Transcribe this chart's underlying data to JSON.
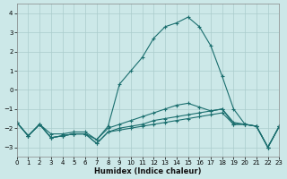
{
  "xlabel": "Humidex (Indice chaleur)",
  "xlim": [
    0,
    23
  ],
  "ylim": [
    -3.5,
    4.5
  ],
  "yticks": [
    -3,
    -2,
    -1,
    0,
    1,
    2,
    3,
    4
  ],
  "xticks": [
    0,
    1,
    2,
    3,
    4,
    5,
    6,
    7,
    8,
    9,
    10,
    11,
    12,
    13,
    14,
    15,
    16,
    17,
    18,
    19,
    20,
    21,
    22,
    23
  ],
  "background_color": "#cce8e8",
  "grid_color": "#aacccc",
  "line_color": "#1a6e6e",
  "line1_y": [
    -1.7,
    -2.4,
    -1.8,
    -2.5,
    -2.4,
    -2.3,
    -2.3,
    -2.8,
    -2.2,
    -2.1,
    -2.0,
    -1.9,
    -1.8,
    -1.7,
    -1.6,
    -1.5,
    -1.4,
    -1.3,
    -1.2,
    -1.8,
    -1.8,
    -1.9,
    -3.0,
    -1.9
  ],
  "line2_y": [
    -1.7,
    -2.4,
    -1.8,
    -2.5,
    -2.4,
    -2.3,
    -2.3,
    -2.8,
    -2.2,
    -2.0,
    -1.9,
    -1.8,
    -1.6,
    -1.5,
    -1.4,
    -1.3,
    -1.2,
    -1.1,
    -1.0,
    -1.8,
    -1.8,
    -1.9,
    -3.0,
    -1.9
  ],
  "line3_y": [
    -1.7,
    -2.4,
    -1.8,
    -2.3,
    -2.3,
    -2.2,
    -2.2,
    -2.6,
    -2.0,
    -1.8,
    -1.6,
    -1.4,
    -1.2,
    -1.0,
    -0.8,
    -0.7,
    -0.9,
    -1.1,
    -1.0,
    -1.7,
    -1.8,
    -1.9,
    -3.0,
    -1.9
  ],
  "line4_y": [
    -1.7,
    -2.4,
    -1.8,
    -2.5,
    -2.4,
    -2.3,
    -2.3,
    -2.6,
    -1.9,
    0.3,
    1.0,
    1.7,
    2.7,
    3.3,
    3.5,
    3.8,
    3.3,
    2.3,
    0.7,
    -1.0,
    -1.8,
    -1.9,
    -3.0,
    -1.9
  ]
}
